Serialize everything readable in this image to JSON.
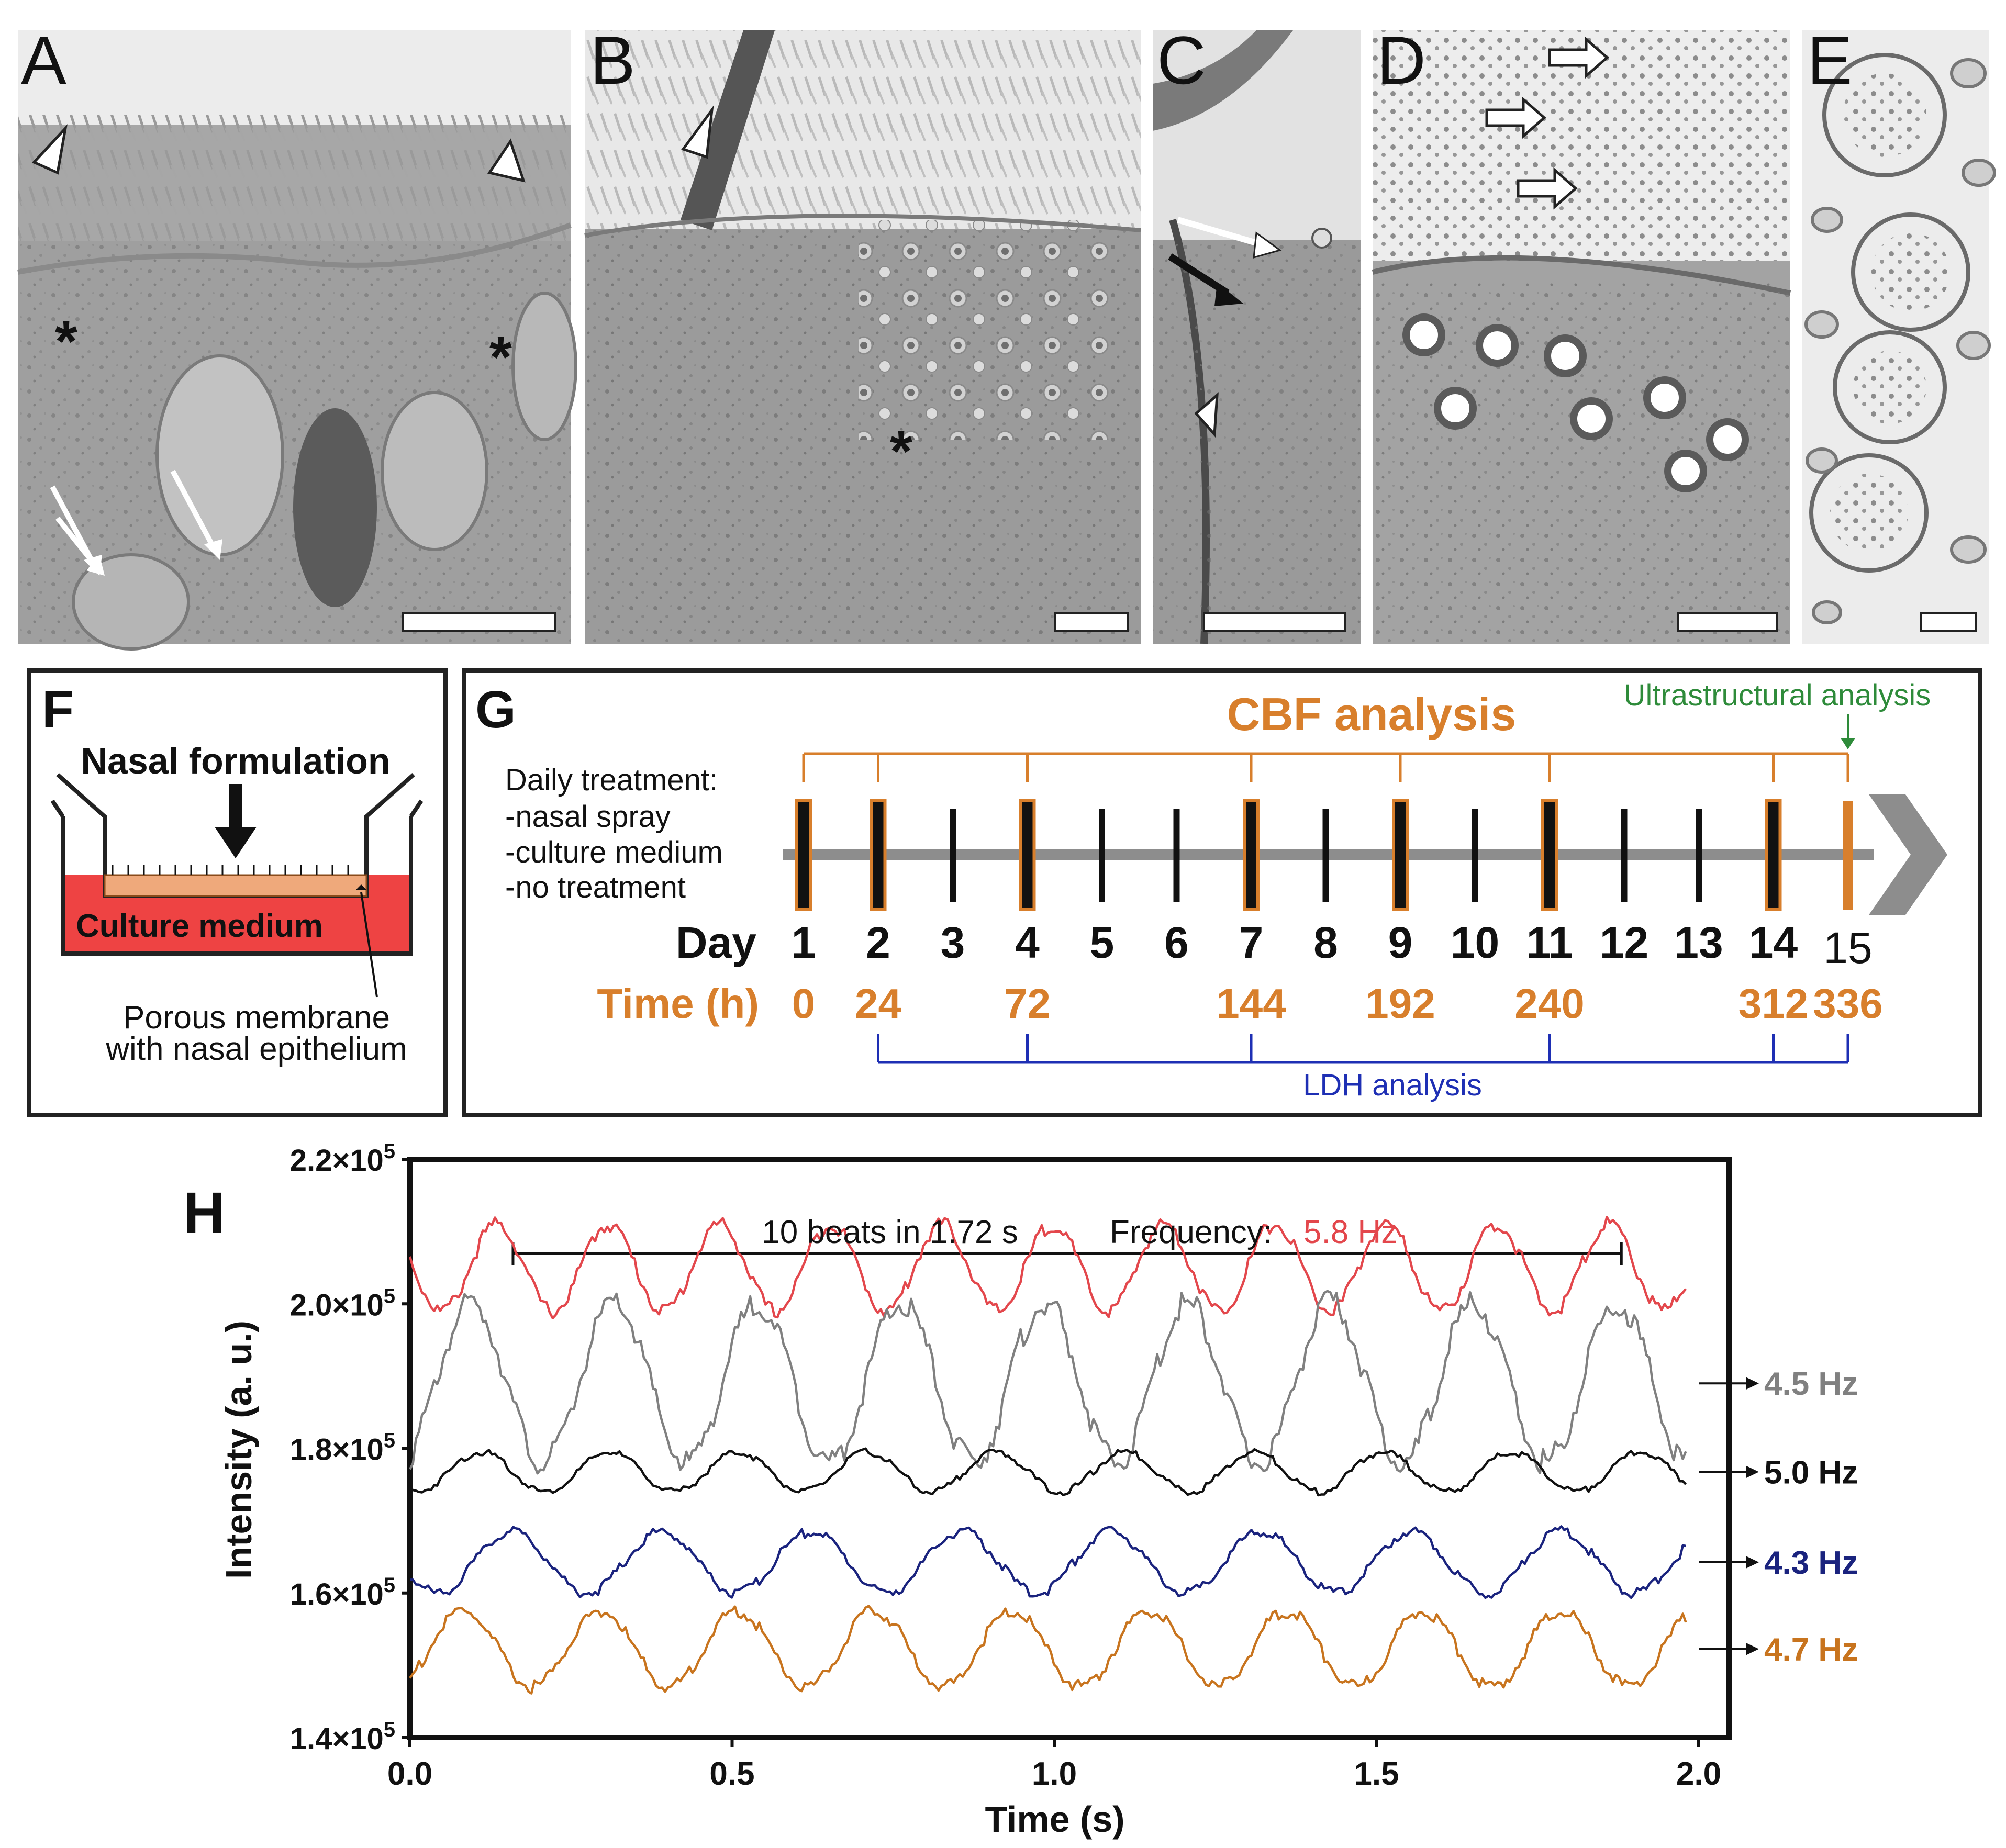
{
  "colors": {
    "orange": "#D87F2C",
    "red": "#E3474C",
    "gray": "#808080",
    "black": "#111111",
    "navy": "#1A237E",
    "brown": "#C8741E",
    "blue": "#1E2FB4",
    "green": "#2E8B3A",
    "medium": "#EE4343",
    "membrane": "#EFA97B"
  },
  "panels": {
    "A": {
      "letter": "A",
      "markers": [
        "*",
        "*"
      ]
    },
    "B": {
      "letter": "B",
      "markers": [
        "*"
      ]
    },
    "C": {
      "letter": "C"
    },
    "D": {
      "letter": "D"
    },
    "E": {
      "letter": "E"
    }
  },
  "panel_f": {
    "letter": "F",
    "formulation": "Nasal formulation",
    "medium": "Culture medium",
    "membrane_line1": "Porous membrane",
    "membrane_line2": "with nasal epithelium"
  },
  "panel_g": {
    "letter": "G",
    "cbf_label": "CBF analysis",
    "ultrastructural_label": "Ultrastructural analysis",
    "ldh_label": "LDH analysis",
    "treatment_lines": [
      "Daily treatment:",
      "-nasal spray",
      "-culture medium",
      "-no treatment"
    ],
    "day_label": "Day",
    "time_label": "Time (h)",
    "days": [
      "1",
      "2",
      "3",
      "4",
      "5",
      "6",
      "7",
      "8",
      "9",
      "10",
      "11",
      "12",
      "13",
      "14",
      "15"
    ],
    "times": [
      "0",
      "24",
      "72",
      "144",
      "192",
      "240",
      "312",
      "336"
    ],
    "cbf_days": [
      "1",
      "2",
      "4",
      "7",
      "9",
      "11",
      "14",
      "15"
    ],
    "ldh_days": [
      "2",
      "4",
      "7",
      "11",
      "14",
      "15"
    ]
  },
  "panel_h": {
    "letter": "H"
  },
  "chart_data": {
    "type": "line",
    "xlabel": "Time (s)",
    "ylabel": "Intensity (a. u.)",
    "xlim": [
      0.0,
      2.0
    ],
    "ylim": [
      140000,
      220000
    ],
    "x_ticks": [
      "0.0",
      "0.5",
      "1.0",
      "1.5",
      "2.0"
    ],
    "y_ticks": [
      {
        "value": 140000,
        "base": "1.4×10",
        "exp": "5"
      },
      {
        "value": 160000,
        "base": "1.6×10",
        "exp": "5"
      },
      {
        "value": 180000,
        "base": "1.8×10",
        "exp": "5"
      },
      {
        "value": 200000,
        "base": "2.0×10",
        "exp": "5"
      },
      {
        "value": 220000,
        "base": "2.2×10",
        "exp": "5"
      }
    ],
    "annotation": {
      "beats_text": "10 beats in 1.72 s",
      "frequency_label": "Frequency:",
      "frequency_value": "5.8 Hz",
      "x_start": 0.16,
      "x_end": 1.88
    },
    "series": [
      {
        "label": "5.8 Hz",
        "color": "#E3474C",
        "freq": 5.8,
        "phase": -0.08,
        "min": 199000,
        "max": 211000,
        "x_start": 0.0,
        "x_end": 1.98
      },
      {
        "label": "4.5 Hz",
        "color": "#808080",
        "freq": 4.5,
        "phase": 0.04,
        "min": 178000,
        "max": 200000,
        "x_start": 0.0,
        "x_end": 1.98
      },
      {
        "label": "5.0 Hz",
        "color": "#111111",
        "freq": 5.0,
        "phase": 0.06,
        "min": 174000,
        "max": 179500,
        "x_start": 0.0,
        "x_end": 1.98
      },
      {
        "label": "4.3 Hz",
        "color": "#1A237E",
        "freq": 4.3,
        "phase": 0.1,
        "min": 160000,
        "max": 168500,
        "x_start": 0.0,
        "x_end": 1.98
      },
      {
        "label": "4.7 Hz",
        "color": "#C8741E",
        "freq": 4.7,
        "phase": 0.03,
        "min": 147000,
        "max": 157500,
        "x_start": 0.0,
        "x_end": 1.98
      }
    ]
  }
}
